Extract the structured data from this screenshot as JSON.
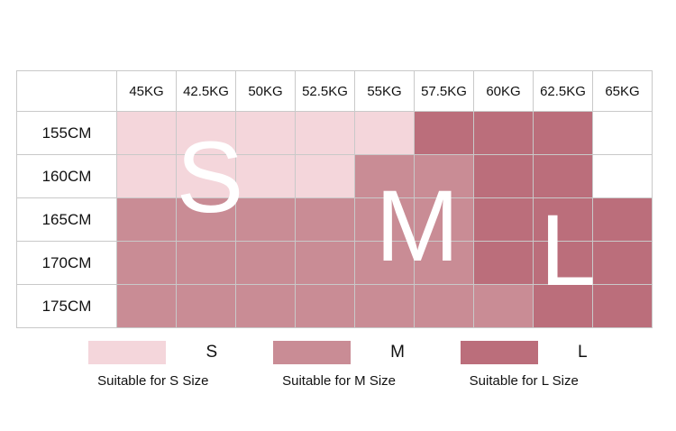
{
  "chart_data": {
    "type": "heatmap",
    "x_labels": [
      "45KG",
      "42.5KG",
      "50KG",
      "52.5KG",
      "55KG",
      "57.5KG",
      "60KG",
      "62.5KG",
      "65KG"
    ],
    "y_labels": [
      "155CM",
      "160CM",
      "165CM",
      "170CM",
      "175CM"
    ],
    "cells": [
      [
        "S",
        "S",
        "S",
        "S",
        "S",
        "L",
        "L",
        "L",
        ""
      ],
      [
        "S",
        "S",
        "S",
        "S",
        "M",
        "M",
        "L",
        "L",
        ""
      ],
      [
        "M",
        "M",
        "M",
        "M",
        "M",
        "M",
        "L",
        "L",
        "L"
      ],
      [
        "M",
        "M",
        "M",
        "M",
        "M",
        "M",
        "L",
        "L",
        "L"
      ],
      [
        "M",
        "M",
        "M",
        "M",
        "M",
        "M",
        "M",
        "L",
        "L"
      ]
    ],
    "size_colors": {
      "S": "#f4d6db",
      "M": "#c98c95",
      "L": "#bb6e7b",
      "": "#ffffff"
    },
    "legend_position": "bottom",
    "grid": true
  },
  "overlay": {
    "s": "S",
    "m": "M",
    "l": "L"
  },
  "legend": {
    "items": [
      {
        "letter": "S",
        "caption": "Suitable for S Size",
        "color": "#f4d6db"
      },
      {
        "letter": "M",
        "caption": "Suitable for M Size",
        "color": "#c98c95"
      },
      {
        "letter": "L",
        "caption": "Suitable for L Size",
        "color": "#bb6e7b"
      }
    ]
  }
}
